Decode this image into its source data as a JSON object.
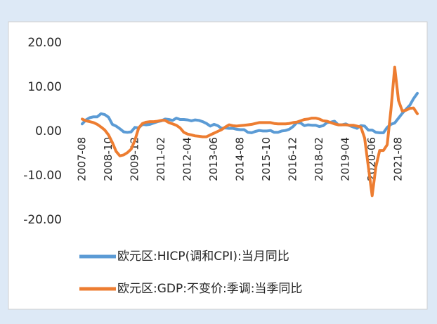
{
  "chart_data": {
    "type": "line",
    "categories": [
      "2007-08",
      null,
      null,
      null,
      null,
      null,
      null,
      "2008-10",
      null,
      null,
      null,
      null,
      null,
      null,
      "2009-12",
      null,
      null,
      null,
      null,
      null,
      null,
      "2011-02",
      null,
      null,
      null,
      null,
      null,
      null,
      "2012-04",
      null,
      null,
      null,
      null,
      null,
      null,
      "2013-06",
      null,
      null,
      null,
      null,
      null,
      null,
      "2014-08",
      null,
      null,
      null,
      null,
      null,
      null,
      "2015-10",
      null,
      null,
      null,
      null,
      null,
      null,
      "2016-12",
      null,
      null,
      null,
      null,
      null,
      null,
      "2018-02",
      null,
      null,
      null,
      null,
      null,
      null,
      "2019-04",
      null,
      null,
      null,
      null,
      null,
      null,
      "2020-06",
      null,
      null,
      null,
      null,
      null,
      null,
      "2021-08",
      null,
      null,
      null,
      null,
      null
    ],
    "series": [
      {
        "name": "欧元区:HICP(调和CPI):当月同比",
        "color": "#5b9bd5",
        "values": [
          1.7,
          2.6,
          3.1,
          3.3,
          3.3,
          4.0,
          3.8,
          3.2,
          1.6,
          1.2,
          0.6,
          -0.1,
          -0.2,
          -0.1,
          0.9,
          0.8,
          1.6,
          1.5,
          1.6,
          1.9,
          2.2,
          2.4,
          2.8,
          2.7,
          2.5,
          3.0,
          2.7,
          2.7,
          2.6,
          2.4,
          2.6,
          2.5,
          2.2,
          1.8,
          1.2,
          1.6,
          1.3,
          0.7,
          0.8,
          0.7,
          0.7,
          0.5,
          0.4,
          0.4,
          -0.2,
          -0.3,
          0.0,
          0.2,
          0.1,
          0.1,
          0.2,
          -0.2,
          -0.2,
          0.1,
          0.2,
          0.5,
          1.1,
          2.0,
          1.9,
          1.3,
          1.5,
          1.4,
          1.4,
          1.1,
          1.3,
          2.0,
          2.1,
          2.3,
          1.5,
          1.5,
          1.7,
          1.3,
          1.0,
          0.7,
          1.3,
          1.2,
          0.3,
          0.3,
          -0.2,
          -0.3,
          -0.3,
          0.9,
          1.6,
          1.9,
          3.0,
          4.1,
          5.0,
          5.9,
          7.4,
          8.6
        ]
      },
      {
        "name": "欧元区:GDP:不变价:季调:当季同比",
        "color": "#ed7d31",
        "values": [
          2.8,
          2.4,
          2.2,
          2.0,
          1.6,
          1.0,
          0.3,
          -0.8,
          -2.5,
          -4.5,
          -5.5,
          -5.3,
          -4.8,
          -4.0,
          -2.0,
          0.8,
          1.8,
          2.1,
          2.2,
          2.2,
          2.3,
          2.5,
          2.5,
          2.0,
          1.7,
          1.4,
          0.8,
          -0.2,
          -0.6,
          -0.8,
          -1.0,
          -1.1,
          -1.2,
          -1.2,
          -0.8,
          -0.4,
          0.0,
          0.4,
          1.0,
          1.5,
          1.3,
          1.2,
          1.3,
          1.4,
          1.5,
          1.6,
          1.8,
          2.0,
          2.0,
          2.0,
          2.0,
          1.8,
          1.7,
          1.7,
          1.7,
          1.8,
          2.0,
          2.1,
          2.4,
          2.7,
          2.8,
          3.0,
          3.0,
          2.8,
          2.4,
          2.3,
          2.0,
          1.7,
          1.5,
          1.5,
          1.5,
          1.4,
          1.4,
          1.2,
          1.0,
          -1.5,
          -8.0,
          -14.5,
          -8.0,
          -4.3,
          -4.3,
          -3.0,
          5.0,
          14.5,
          7.0,
          4.6,
          4.8,
          5.2,
          5.3,
          4.0
        ]
      }
    ],
    "ylim": [
      -20,
      20
    ],
    "yticks": [
      {
        "value": 20,
        "label": "20.00"
      },
      {
        "value": 10,
        "label": "10.00"
      },
      {
        "value": 0,
        "label": "0.00"
      },
      {
        "value": -10,
        "label": "-10.00"
      },
      {
        "value": -20,
        "label": "-20.00"
      }
    ],
    "legend": "bottom"
  }
}
